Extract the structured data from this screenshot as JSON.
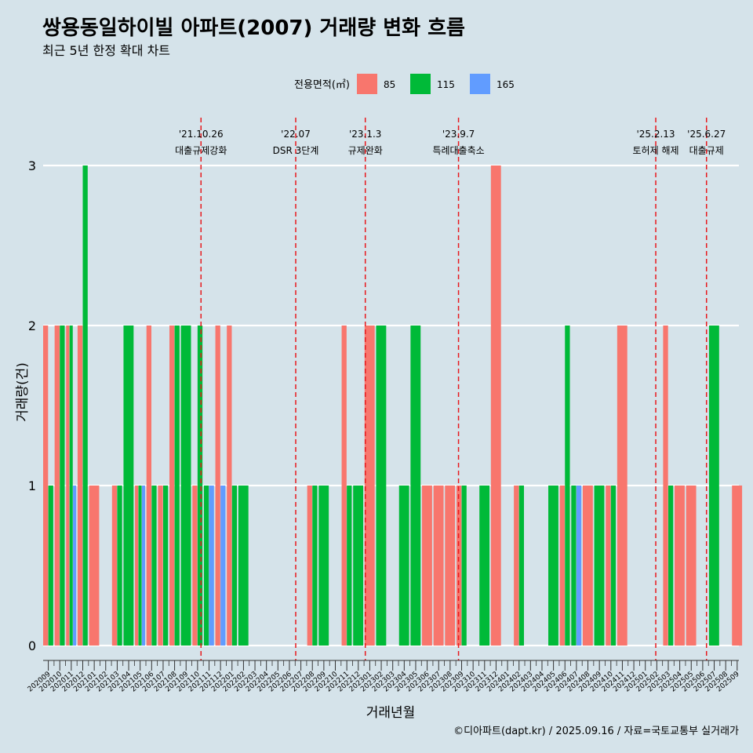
{
  "title": "쌍용동일하이빌 아파트(2007) 거래량 변화 흐름",
  "subtitle": "최근 5년 한정 확대 차트",
  "caption": "©디아파트(dapt.kr) / 2025.09.16 / 자료=국토교통부 실거래가",
  "legend": {
    "title": "전용면적(㎡)",
    "items": [
      {
        "label": "85",
        "color": "#F8766D"
      },
      {
        "label": "115",
        "color": "#00BA38"
      },
      {
        "label": "165",
        "color": "#619CFF"
      }
    ]
  },
  "chart_data": {
    "type": "bar",
    "xlabel": "거래년월",
    "ylabel": "거래량(건)",
    "ylim": [
      0,
      3
    ],
    "yticks": [
      0,
      1,
      2,
      3
    ],
    "grid": true,
    "legend_position": "top",
    "categories": [
      "202009",
      "202010",
      "202011",
      "202012",
      "202101",
      "202102",
      "202103",
      "202104",
      "202105",
      "202106",
      "202107",
      "202108",
      "202109",
      "202110",
      "202111",
      "202112",
      "202201",
      "202202",
      "202203",
      "202204",
      "202205",
      "202206",
      "202207",
      "202208",
      "202209",
      "202210",
      "202211",
      "202212",
      "202301",
      "202302",
      "202303",
      "202304",
      "202305",
      "202306",
      "202307",
      "202308",
      "202309",
      "202310",
      "202311",
      "202312",
      "202401",
      "202402",
      "202403",
      "202404",
      "202405",
      "202406",
      "202407",
      "202408",
      "202409",
      "202410",
      "202411",
      "202412",
      "202501",
      "202502",
      "202503",
      "202504",
      "202505",
      "202506",
      "202507",
      "202508",
      "202509"
    ],
    "bars": [
      {
        "month": "202009",
        "series": "85",
        "value": 2
      },
      {
        "month": "202009",
        "series": "115",
        "value": 1
      },
      {
        "month": "202010",
        "series": "85",
        "value": 2
      },
      {
        "month": "202010",
        "series": "115",
        "value": 2
      },
      {
        "month": "202011",
        "series": "85",
        "value": 2
      },
      {
        "month": "202011",
        "series": "115",
        "value": 2
      },
      {
        "month": "202011",
        "series": "165",
        "value": 1
      },
      {
        "month": "202012",
        "series": "85",
        "value": 2
      },
      {
        "month": "202012",
        "series": "115",
        "value": 3
      },
      {
        "month": "202101",
        "series": "85",
        "value": 1
      },
      {
        "month": "202103",
        "series": "85",
        "value": 1
      },
      {
        "month": "202103",
        "series": "115",
        "value": 1
      },
      {
        "month": "202104",
        "series": "115",
        "value": 2
      },
      {
        "month": "202105",
        "series": "85",
        "value": 1
      },
      {
        "month": "202105",
        "series": "115",
        "value": 1
      },
      {
        "month": "202105",
        "series": "165",
        "value": 1
      },
      {
        "month": "202106",
        "series": "85",
        "value": 2
      },
      {
        "month": "202106",
        "series": "115",
        "value": 1
      },
      {
        "month": "202107",
        "series": "85",
        "value": 1
      },
      {
        "month": "202107",
        "series": "115",
        "value": 1
      },
      {
        "month": "202108",
        "series": "85",
        "value": 2
      },
      {
        "month": "202108",
        "series": "115",
        "value": 2
      },
      {
        "month": "202109",
        "series": "115",
        "value": 2
      },
      {
        "month": "202110",
        "series": "85",
        "value": 1
      },
      {
        "month": "202110",
        "series": "115",
        "value": 2
      },
      {
        "month": "202111",
        "series": "115",
        "value": 1
      },
      {
        "month": "202111",
        "series": "165",
        "value": 1
      },
      {
        "month": "202112",
        "series": "85",
        "value": 2
      },
      {
        "month": "202112",
        "series": "165",
        "value": 1
      },
      {
        "month": "202201",
        "series": "85",
        "value": 2
      },
      {
        "month": "202201",
        "series": "115",
        "value": 1
      },
      {
        "month": "202202",
        "series": "115",
        "value": 1
      },
      {
        "month": "202208",
        "series": "85",
        "value": 1
      },
      {
        "month": "202208",
        "series": "115",
        "value": 1
      },
      {
        "month": "202209",
        "series": "115",
        "value": 1
      },
      {
        "month": "202211",
        "series": "85",
        "value": 2
      },
      {
        "month": "202211",
        "series": "115",
        "value": 1
      },
      {
        "month": "202212",
        "series": "115",
        "value": 1
      },
      {
        "month": "202301",
        "series": "85",
        "value": 2
      },
      {
        "month": "202302",
        "series": "115",
        "value": 2
      },
      {
        "month": "202304",
        "series": "115",
        "value": 1
      },
      {
        "month": "202305",
        "series": "115",
        "value": 2
      },
      {
        "month": "202306",
        "series": "85",
        "value": 1
      },
      {
        "month": "202307",
        "series": "85",
        "value": 1
      },
      {
        "month": "202308",
        "series": "85",
        "value": 1
      },
      {
        "month": "202309",
        "series": "85",
        "value": 1
      },
      {
        "month": "202309",
        "series": "115",
        "value": 1
      },
      {
        "month": "202311",
        "series": "115",
        "value": 1
      },
      {
        "month": "202312",
        "series": "85",
        "value": 3
      },
      {
        "month": "202402",
        "series": "85",
        "value": 1
      },
      {
        "month": "202402",
        "series": "115",
        "value": 1
      },
      {
        "month": "202405",
        "series": "115",
        "value": 1
      },
      {
        "month": "202406",
        "series": "85",
        "value": 1
      },
      {
        "month": "202406",
        "series": "115",
        "value": 2
      },
      {
        "month": "202407",
        "series": "115",
        "value": 1
      },
      {
        "month": "202407",
        "series": "165",
        "value": 1
      },
      {
        "month": "202408",
        "series": "85",
        "value": 1
      },
      {
        "month": "202409",
        "series": "115",
        "value": 1
      },
      {
        "month": "202410",
        "series": "85",
        "value": 1
      },
      {
        "month": "202410",
        "series": "115",
        "value": 1
      },
      {
        "month": "202411",
        "series": "85",
        "value": 2
      },
      {
        "month": "202503",
        "series": "85",
        "value": 2
      },
      {
        "month": "202503",
        "series": "115",
        "value": 1
      },
      {
        "month": "202504",
        "series": "85",
        "value": 1
      },
      {
        "month": "202505",
        "series": "85",
        "value": 1
      },
      {
        "month": "202507",
        "series": "115",
        "value": 2
      },
      {
        "month": "202509",
        "series": "85",
        "value": 1
      }
    ],
    "events": [
      {
        "date": "'21.10.26",
        "label": "대출규제강화",
        "month": "202110",
        "day": 26
      },
      {
        "date": "'22.07",
        "label": "DSR 3단계",
        "month": "202207",
        "day": 1
      },
      {
        "date": "'23.1.3",
        "label": "규제완화",
        "month": "202301",
        "day": 3
      },
      {
        "date": "'23.9.7",
        "label": "특례대출축소",
        "month": "202309",
        "day": 7
      },
      {
        "date": "'25.2.13",
        "label": "토허제 해제",
        "month": "202502",
        "day": 13
      },
      {
        "date": "'25.6.27",
        "label": "대출규제",
        "month": "202506",
        "day": 27
      }
    ],
    "event_line_color": "#e8191d"
  }
}
